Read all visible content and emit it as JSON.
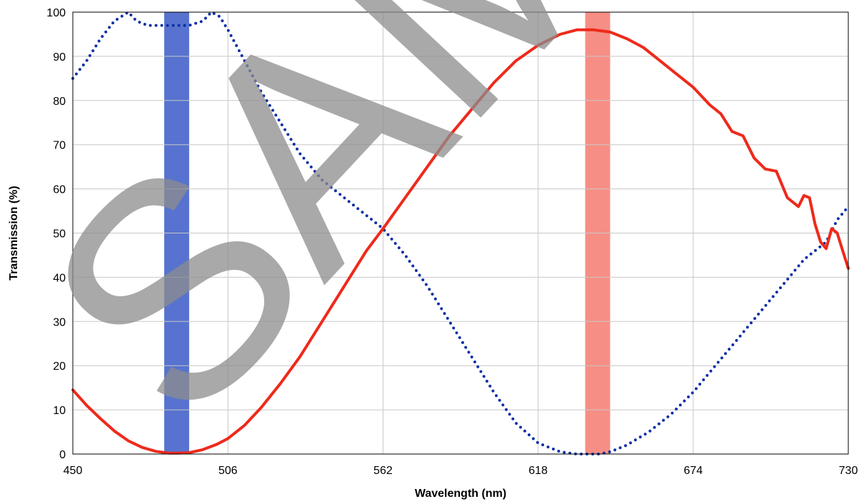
{
  "chart_data": {
    "type": "line",
    "title": "",
    "xlabel": "Wavelength (nm)",
    "ylabel": "Transmission (%)",
    "xlim": [
      450,
      730
    ],
    "ylim": [
      0,
      100
    ],
    "xticks": [
      450,
      506,
      562,
      618,
      674,
      730
    ],
    "yticks": [
      0,
      10,
      20,
      30,
      40,
      50,
      60,
      70,
      80,
      90,
      100
    ],
    "grid": true,
    "legend": "none",
    "watermark": "SAMPLE",
    "bands": [
      {
        "from": 483,
        "to": 492,
        "color": "#3a5bc7"
      },
      {
        "from": 635,
        "to": 644,
        "color": "#f47a70"
      }
    ],
    "series": [
      {
        "style": "dotted",
        "color": "#0d2fa6",
        "x": [
          450,
          455,
          460,
          465,
          470,
          473,
          477,
          482,
          487,
          492,
          497,
          500,
          503,
          506,
          512,
          518,
          525,
          532,
          540,
          548,
          556,
          562,
          570,
          578,
          586,
          594,
          602,
          610,
          618,
          626,
          632,
          636,
          640,
          644,
          650,
          658,
          666,
          674,
          682,
          690,
          698,
          706,
          714,
          722,
          726,
          730
        ],
        "values": [
          85,
          89,
          94,
          98,
          100,
          98,
          97,
          97,
          97,
          97,
          98,
          100,
          99,
          96,
          89,
          82,
          75,
          68,
          62,
          58,
          54,
          51,
          45,
          38,
          30,
          22,
          14,
          7,
          2.5,
          0.5,
          0,
          0,
          0,
          0.5,
          2,
          5,
          9,
          14,
          20,
          26,
          32,
          38,
          44,
          48,
          53,
          56
        ]
      },
      {
        "style": "solid",
        "color": "#ee2a1b",
        "x": [
          450,
          455,
          460,
          465,
          470,
          475,
          480,
          485,
          488,
          492,
          497,
          502,
          506,
          512,
          518,
          525,
          532,
          540,
          548,
          556,
          562,
          570,
          578,
          586,
          594,
          602,
          610,
          618,
          626,
          632,
          638,
          644,
          650,
          656,
          662,
          668,
          674,
          680,
          684,
          688,
          692,
          696,
          700,
          704,
          708,
          712,
          714,
          716,
          718,
          720,
          722,
          724,
          726,
          728,
          730
        ],
        "values": [
          14.5,
          11,
          8,
          5.2,
          3,
          1.5,
          0.6,
          0.2,
          0.2,
          0.3,
          1,
          2.2,
          3.5,
          6.5,
          10.5,
          16,
          22,
          30,
          38,
          46,
          51,
          58,
          65,
          72,
          78,
          84,
          89,
          92.5,
          95,
          96,
          96,
          95.5,
          94,
          92,
          89,
          86,
          83,
          79,
          77,
          73,
          72,
          67,
          64.5,
          64,
          58,
          56,
          58.5,
          58,
          52,
          48,
          46.5,
          51,
          50,
          46,
          42
        ]
      }
    ]
  }
}
